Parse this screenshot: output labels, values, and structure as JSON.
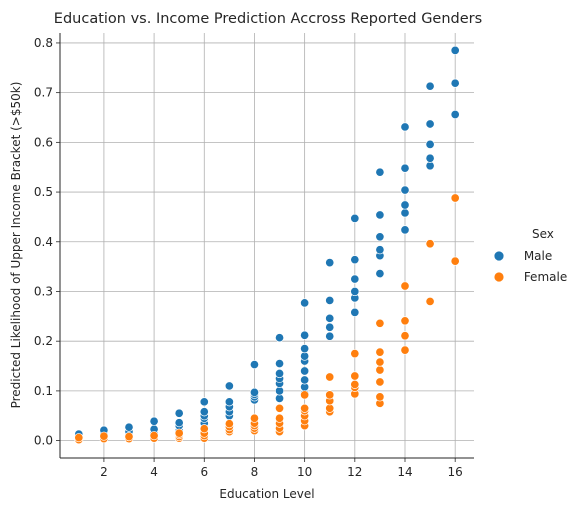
{
  "chart_data": {
    "type": "scatter",
    "title": "Education vs. Income Prediction Accross Reported Genders",
    "xlabel": "Education Level",
    "ylabel": "Predicted Likelihood of Upper Income Bracket (>$50k)",
    "xlim": [
      0.25,
      16.75
    ],
    "ylim": [
      -0.035,
      0.82
    ],
    "xticks": [
      2,
      4,
      6,
      8,
      10,
      12,
      14,
      16
    ],
    "yticks": [
      0.0,
      0.1,
      0.2,
      0.3,
      0.4,
      0.5,
      0.6,
      0.7,
      0.8
    ],
    "grid": true,
    "legend": {
      "title": "Sex",
      "placement": "right"
    },
    "series": [
      {
        "name": " Male",
        "color": "#1f77b4",
        "points": [
          [
            1,
            0.007
          ],
          [
            1,
            0.013
          ],
          [
            2,
            0.01
          ],
          [
            2,
            0.016
          ],
          [
            2,
            0.021
          ],
          [
            3,
            0.012
          ],
          [
            3,
            0.018
          ],
          [
            3,
            0.027
          ],
          [
            4,
            0.015
          ],
          [
            4,
            0.023
          ],
          [
            4,
            0.039
          ],
          [
            5,
            0.02
          ],
          [
            5,
            0.03
          ],
          [
            5,
            0.036
          ],
          [
            5,
            0.055
          ],
          [
            6,
            0.025
          ],
          [
            6,
            0.035
          ],
          [
            6,
            0.045
          ],
          [
            6,
            0.05
          ],
          [
            6,
            0.058
          ],
          [
            6,
            0.078
          ],
          [
            7,
            0.05
          ],
          [
            7,
            0.058
          ],
          [
            7,
            0.068
          ],
          [
            7,
            0.078
          ],
          [
            7,
            0.11
          ],
          [
            8,
            0.082
          ],
          [
            8,
            0.088
          ],
          [
            8,
            0.093
          ],
          [
            8,
            0.097
          ],
          [
            8,
            0.153
          ],
          [
            9,
            0.085
          ],
          [
            9,
            0.1
          ],
          [
            9,
            0.115
          ],
          [
            9,
            0.125
          ],
          [
            9,
            0.135
          ],
          [
            9,
            0.155
          ],
          [
            9,
            0.207
          ],
          [
            10,
            0.095
          ],
          [
            10,
            0.108
          ],
          [
            10,
            0.122
          ],
          [
            10,
            0.14
          ],
          [
            10,
            0.16
          ],
          [
            10,
            0.17
          ],
          [
            10,
            0.185
          ],
          [
            10,
            0.212
          ],
          [
            10,
            0.277
          ],
          [
            11,
            0.21
          ],
          [
            11,
            0.228
          ],
          [
            11,
            0.246
          ],
          [
            11,
            0.282
          ],
          [
            11,
            0.358
          ],
          [
            12,
            0.258
          ],
          [
            12,
            0.287
          ],
          [
            12,
            0.3
          ],
          [
            12,
            0.325
          ],
          [
            12,
            0.364
          ],
          [
            12,
            0.447
          ],
          [
            13,
            0.336
          ],
          [
            13,
            0.372
          ],
          [
            13,
            0.384
          ],
          [
            13,
            0.41
          ],
          [
            13,
            0.454
          ],
          [
            13,
            0.54
          ],
          [
            14,
            0.424
          ],
          [
            14,
            0.458
          ],
          [
            14,
            0.474
          ],
          [
            14,
            0.504
          ],
          [
            14,
            0.548
          ],
          [
            14,
            0.631
          ],
          [
            15,
            0.553
          ],
          [
            15,
            0.568
          ],
          [
            15,
            0.596
          ],
          [
            15,
            0.637
          ],
          [
            15,
            0.713
          ],
          [
            16,
            0.656
          ],
          [
            16,
            0.719
          ],
          [
            16,
            0.785
          ]
        ]
      },
      {
        "name": " Female",
        "color": "#ff7f0e",
        "points": [
          [
            1,
            0.002
          ],
          [
            1,
            0.006
          ],
          [
            2,
            0.004
          ],
          [
            2,
            0.009
          ],
          [
            3,
            0.004
          ],
          [
            3,
            0.008
          ],
          [
            4,
            0.005
          ],
          [
            4,
            0.01
          ],
          [
            5,
            0.005
          ],
          [
            5,
            0.008
          ],
          [
            5,
            0.012
          ],
          [
            5,
            0.015
          ],
          [
            6,
            0.005
          ],
          [
            6,
            0.01
          ],
          [
            6,
            0.015
          ],
          [
            6,
            0.024
          ],
          [
            7,
            0.018
          ],
          [
            7,
            0.022
          ],
          [
            7,
            0.028
          ],
          [
            7,
            0.034
          ],
          [
            8,
            0.02
          ],
          [
            8,
            0.025
          ],
          [
            8,
            0.03
          ],
          [
            8,
            0.035
          ],
          [
            8,
            0.045
          ],
          [
            9,
            0.018
          ],
          [
            9,
            0.025
          ],
          [
            9,
            0.035
          ],
          [
            9,
            0.045
          ],
          [
            9,
            0.065
          ],
          [
            10,
            0.03
          ],
          [
            10,
            0.04
          ],
          [
            10,
            0.05
          ],
          [
            10,
            0.06
          ],
          [
            10,
            0.065
          ],
          [
            10,
            0.092
          ],
          [
            11,
            0.058
          ],
          [
            11,
            0.065
          ],
          [
            11,
            0.08
          ],
          [
            11,
            0.092
          ],
          [
            11,
            0.128
          ],
          [
            12,
            0.094
          ],
          [
            12,
            0.107
          ],
          [
            12,
            0.113
          ],
          [
            12,
            0.13
          ],
          [
            12,
            0.175
          ],
          [
            13,
            0.075
          ],
          [
            13,
            0.088
          ],
          [
            13,
            0.118
          ],
          [
            13,
            0.142
          ],
          [
            13,
            0.158
          ],
          [
            13,
            0.178
          ],
          [
            13,
            0.236
          ],
          [
            14,
            0.182
          ],
          [
            14,
            0.211
          ],
          [
            14,
            0.241
          ],
          [
            14,
            0.311
          ],
          [
            15,
            0.28
          ],
          [
            15,
            0.396
          ],
          [
            16,
            0.361
          ],
          [
            16,
            0.488
          ]
        ]
      }
    ]
  }
}
